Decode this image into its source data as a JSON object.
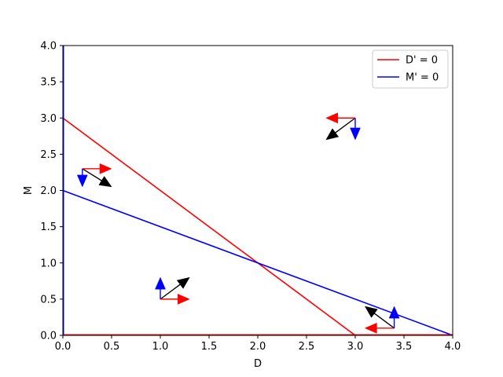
{
  "chart_data": {
    "type": "line",
    "xlabel": "D",
    "ylabel": "M",
    "xlim": [
      0.0,
      4.0
    ],
    "ylim": [
      0.0,
      4.0
    ],
    "xticks": [
      "0.0",
      "0.5",
      "1.0",
      "1.5",
      "2.0",
      "2.5",
      "3.0",
      "3.5",
      "4.0"
    ],
    "yticks": [
      "0.0",
      "0.5",
      "1.0",
      "1.5",
      "2.0",
      "2.5",
      "3.0",
      "3.5",
      "4.0"
    ],
    "grid": false,
    "legend_position": "top-right",
    "series": [
      {
        "name": "D' = 0",
        "color": "#ff0000",
        "points": [
          [
            0,
            3
          ],
          [
            3,
            0
          ]
        ]
      },
      {
        "name": "M' = 0",
        "color": "#0000ff",
        "points": [
          [
            0,
            2
          ],
          [
            4,
            0
          ]
        ]
      }
    ],
    "axis_nullclines": [
      {
        "axis": "x",
        "value": 0,
        "color": "#0000ff",
        "note_series": "M' = 0"
      },
      {
        "axis": "y",
        "value": 0,
        "color": "#ff0000",
        "note_series": "D' = 0"
      }
    ],
    "arrows": [
      {
        "point": [
          0.2,
          2.3
        ],
        "dx": 0.3,
        "dy": -0.25,
        "color": "#000000"
      },
      {
        "point": [
          0.2,
          2.3
        ],
        "dx": 0.3,
        "dy": 0.0,
        "color": "#ff0000"
      },
      {
        "point": [
          0.2,
          2.3
        ],
        "dx": 0.0,
        "dy": -0.25,
        "color": "#0000ff"
      },
      {
        "point": [
          1.0,
          0.5
        ],
        "dx": 0.3,
        "dy": 0.3,
        "color": "#000000"
      },
      {
        "point": [
          1.0,
          0.5
        ],
        "dx": 0.3,
        "dy": 0.0,
        "color": "#ff0000"
      },
      {
        "point": [
          1.0,
          0.5
        ],
        "dx": 0.0,
        "dy": 0.3,
        "color": "#0000ff"
      },
      {
        "point": [
          3.0,
          3.0
        ],
        "dx": -0.3,
        "dy": -0.3,
        "color": "#000000"
      },
      {
        "point": [
          3.0,
          3.0
        ],
        "dx": -0.3,
        "dy": 0.0,
        "color": "#ff0000"
      },
      {
        "point": [
          3.0,
          3.0
        ],
        "dx": 0.0,
        "dy": -0.3,
        "color": "#0000ff"
      },
      {
        "point": [
          3.4,
          0.1
        ],
        "dx": -0.3,
        "dy": 0.3,
        "color": "#000000"
      },
      {
        "point": [
          3.4,
          0.1
        ],
        "dx": -0.3,
        "dy": 0.0,
        "color": "#ff0000"
      },
      {
        "point": [
          3.4,
          0.1
        ],
        "dx": 0.0,
        "dy": 0.3,
        "color": "#0000ff"
      }
    ]
  }
}
